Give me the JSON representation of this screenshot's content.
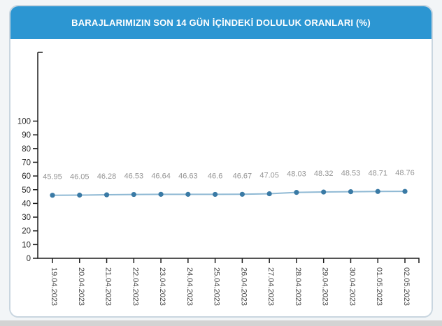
{
  "page": {
    "background_color": "#f2f5f7",
    "bottom_strip_color": "#d3d3d3"
  },
  "header": {
    "title": "BARAJLARIMIZIN SON 14 GÜN İÇİNDEKİ DOLULUK ORANLARI (%)",
    "background_color": "#2c96d2",
    "text_color": "#ffffff"
  },
  "chart_data": {
    "type": "line",
    "title": "BARAJLARIMIZIN SON 14 GÜN İÇİNDEKİ DOLULUK ORANLARI (%)",
    "categories": [
      "19.04.2023",
      "20.04.2023",
      "21.04.2023",
      "22.04.2023",
      "23.04.2023",
      "24.04.2023",
      "25.04.2023",
      "26.04.2023",
      "27.04.2023",
      "28.04.2023",
      "29.04.2023",
      "30.04.2023",
      "01.05.2023",
      "02.05.2023"
    ],
    "values": [
      45.95,
      46.05,
      46.28,
      46.53,
      46.64,
      46.63,
      46.6,
      46.67,
      47.05,
      48.03,
      48.32,
      48.53,
      48.71,
      48.76
    ],
    "point_labels": [
      "45.95",
      "46.05",
      "46.28",
      "46.53",
      "46.64",
      "46.63",
      "46.6",
      "46.67",
      "47.05",
      "48.03",
      "48.32",
      "48.53",
      "48.71",
      "48.76"
    ],
    "xlabel": "",
    "ylabel": "",
    "ylim": [
      0,
      100
    ],
    "ytick_step": 10,
    "grid": false,
    "legend": "none",
    "colors": {
      "line": "#8fb9d4",
      "marker": "#3a7aa5",
      "data_label": "#959595",
      "axis": "#1c1c1c",
      "ytick_label": "#2b2b2b",
      "xtick_label": "#4a4a4a"
    }
  }
}
